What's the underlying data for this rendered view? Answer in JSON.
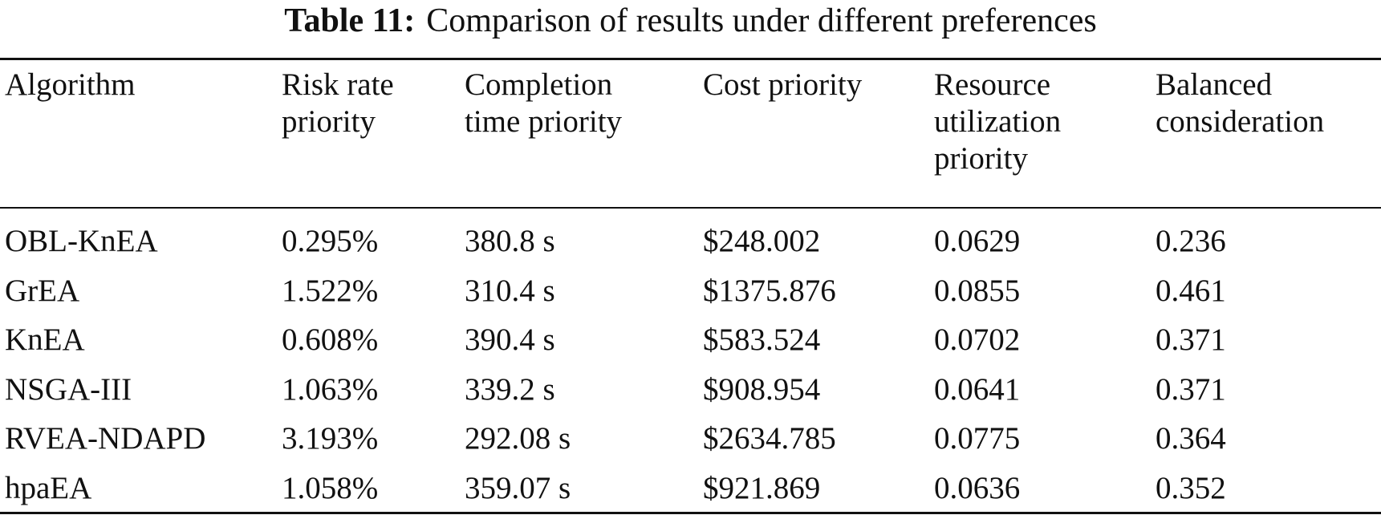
{
  "caption": {
    "label": "Table 11:",
    "text": "Comparison of results under different preferences"
  },
  "columns": [
    [
      "Algorithm"
    ],
    [
      "Risk rate",
      "priority"
    ],
    [
      "Completion",
      "time priority"
    ],
    [
      "Cost priority"
    ],
    [
      "Resource",
      "utilization",
      "priority"
    ],
    [
      "Balanced",
      "consideration"
    ]
  ],
  "rows": [
    {
      "algorithm": "OBL-KnEA",
      "risk": "0.295%",
      "time": "380.8 s",
      "cost": "$248.002",
      "resource": "0.0629",
      "balanced": "0.236"
    },
    {
      "algorithm": "GrEA",
      "risk": "1.522%",
      "time": "310.4 s",
      "cost": "$1375.876",
      "resource": "0.0855",
      "balanced": "0.461"
    },
    {
      "algorithm": "KnEA",
      "risk": "0.608%",
      "time": "390.4 s",
      "cost": "$583.524",
      "resource": "0.0702",
      "balanced": "0.371"
    },
    {
      "algorithm": "NSGA-III",
      "risk": "1.063%",
      "time": "339.2 s",
      "cost": "$908.954",
      "resource": "0.0641",
      "balanced": "0.371"
    },
    {
      "algorithm": "RVEA-NDAPD",
      "risk": "3.193%",
      "time": "292.08 s",
      "cost": "$2634.785",
      "resource": "0.0775",
      "balanced": "0.364"
    },
    {
      "algorithm": "hpaEA",
      "risk": "1.058%",
      "time": "359.07 s",
      "cost": "$921.869",
      "resource": "0.0636",
      "balanced": "0.352"
    }
  ],
  "bold_cells": [
    {
      "row": 0,
      "col": "risk"
    },
    {
      "row": 0,
      "col": "cost"
    },
    {
      "row": 0,
      "col": "resource"
    },
    {
      "row": 0,
      "col": "balanced"
    },
    {
      "row": 4,
      "col": "time"
    }
  ]
}
